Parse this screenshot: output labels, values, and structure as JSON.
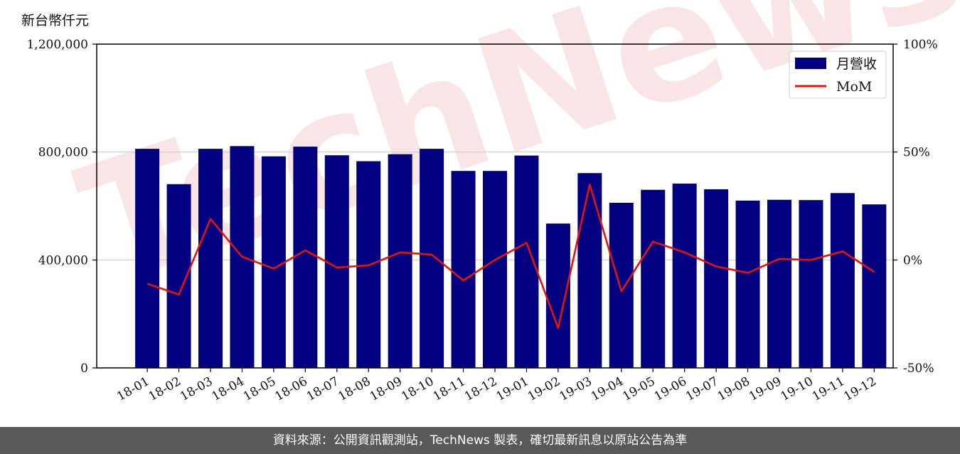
{
  "unit_label": "新台幣仟元",
  "footer": "資料來源：公開資訊觀測站，TechNews 製表，確切最新訊息以原站公告為準",
  "watermark": "TechNews",
  "colors": {
    "bar": "#000080",
    "line": "#e3140c",
    "grid": "#cccccc",
    "footer_bg": "#595959",
    "watermark": "#f3c6c6"
  },
  "chart_data": {
    "type": "bar+line",
    "categories": [
      "18-01",
      "18-02",
      "18-03",
      "18-04",
      "18-05",
      "18-06",
      "18-07",
      "18-08",
      "18-09",
      "18-10",
      "18-11",
      "18-12",
      "19-01",
      "19-02",
      "19-03",
      "19-04",
      "19-05",
      "19-06",
      "19-07",
      "19-08",
      "19-09",
      "19-10",
      "19-11",
      "19-12"
    ],
    "series": [
      {
        "name": "月營收",
        "axis": "left",
        "type": "bar",
        "values": [
          812000,
          681000,
          812000,
          822000,
          784000,
          820000,
          788000,
          766000,
          792000,
          812000,
          730000,
          730000,
          787000,
          535000,
          722000,
          612000,
          660000,
          683000,
          662000,
          620000,
          623000,
          622000,
          648000,
          606000
        ]
      },
      {
        "name": "MoM",
        "axis": "right",
        "type": "line",
        "values": [
          -11,
          -16,
          19,
          1.5,
          -4,
          4.5,
          -3.5,
          -2.5,
          3.5,
          2.5,
          -9.5,
          0,
          8,
          -31.5,
          35,
          -14.5,
          8.5,
          3.5,
          -3,
          -6,
          0.5,
          0,
          4,
          -5.5
        ]
      }
    ],
    "yaxis_left": {
      "ylim": [
        0,
        1200000
      ],
      "ticks": [
        0,
        400000,
        800000,
        1200000
      ],
      "tick_labels": [
        "0",
        "400,000",
        "800,000",
        "1,200,000"
      ]
    },
    "yaxis_right": {
      "ylim": [
        -50,
        100
      ],
      "ticks": [
        -50,
        0,
        50,
        100
      ],
      "tick_labels": [
        "-50%",
        "0%",
        "50%",
        "100%"
      ]
    },
    "grid": "horizontal",
    "legend": {
      "placement": "top-right",
      "entries": [
        "月營收",
        "MoM"
      ]
    }
  }
}
